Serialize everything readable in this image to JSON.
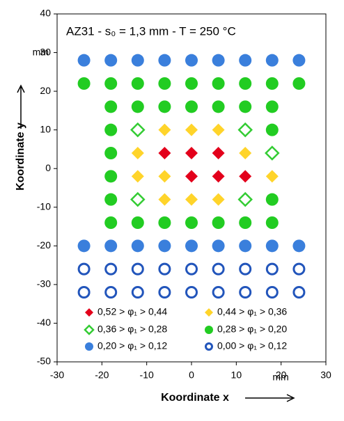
{
  "chart_data": {
    "type": "scatter",
    "title": "AZ31 - s₀ = 1,3 mm - T = 250 °C",
    "x_label": "Koordinate x",
    "y_label": "Koordinate y",
    "x_unit": "mm",
    "y_unit": "mm",
    "xlim": [
      -30,
      30
    ],
    "xticks": [
      -30,
      -20,
      -10,
      0,
      10,
      20,
      30
    ],
    "ylim": [
      -50,
      40
    ],
    "yticks": [
      -50,
      -40,
      -30,
      -20,
      -10,
      0,
      10,
      20,
      30,
      40
    ],
    "series": [
      {
        "name": "0,52 > φ₁ > 0,44",
        "color": "#e3001b",
        "marker": "diamond",
        "x": [
          -6,
          0,
          6,
          0,
          6,
          12
        ],
        "y": [
          4,
          4,
          4,
          -2,
          -2,
          -2
        ]
      },
      {
        "name": "0,44 > φ₁ > 0,36",
        "color": "#ffd42a",
        "marker": "diamond",
        "x": [
          -6,
          0,
          6,
          -12,
          12,
          -12,
          -6,
          18,
          -6,
          0,
          6
        ],
        "y": [
          10,
          10,
          10,
          4,
          4,
          -2,
          -2,
          -2,
          -8,
          -8,
          -8
        ]
      },
      {
        "name": "0,36 > φ₁ > 0,28",
        "color": "#33cc33",
        "marker": "open-diamond",
        "x": [
          -12,
          12,
          18,
          -12,
          12
        ],
        "y": [
          10,
          10,
          4,
          -8,
          -8
        ]
      },
      {
        "name": "0,28 > φ₁ > 0,20",
        "color": "#22cc22",
        "marker": "circle",
        "x": [
          -24,
          -18,
          -12,
          -6,
          0,
          6,
          12,
          18,
          24,
          -18,
          -12,
          -6,
          0,
          6,
          12,
          18,
          -18,
          18,
          -18,
          -18,
          -18,
          18,
          -18,
          -12,
          -6,
          0,
          6,
          12,
          18
        ],
        "y": [
          22,
          22,
          22,
          22,
          22,
          22,
          22,
          22,
          22,
          16,
          16,
          16,
          16,
          16,
          16,
          16,
          10,
          10,
          4,
          -2,
          -8,
          -8,
          -14,
          -14,
          -14,
          -14,
          -14,
          -14,
          -14
        ]
      },
      {
        "name": "0,20 > φ₁ > 0,12",
        "color": "#3a7fdc",
        "marker": "circle",
        "x": [
          -24,
          -18,
          -12,
          -6,
          0,
          6,
          12,
          18,
          24,
          -24,
          -18,
          -12,
          -6,
          0,
          6,
          12,
          18,
          24
        ],
        "y": [
          28,
          28,
          28,
          28,
          28,
          28,
          28,
          28,
          28,
          -20,
          -20,
          -20,
          -20,
          -20,
          -20,
          -20,
          -20,
          -20
        ]
      },
      {
        "name": "0,00 > φ₁ > 0,12",
        "color": "#2255bb",
        "marker": "open-circle",
        "x": [
          -24,
          -18,
          -12,
          -6,
          0,
          6,
          12,
          18,
          24,
          -24,
          -18,
          -12,
          -6,
          0,
          6,
          12,
          18,
          24
        ],
        "y": [
          -26,
          -26,
          -26,
          -26,
          -26,
          -26,
          -26,
          -26,
          -26,
          -32,
          -32,
          -32,
          -32,
          -32,
          -32,
          -32,
          -32,
          -32
        ]
      }
    ]
  }
}
